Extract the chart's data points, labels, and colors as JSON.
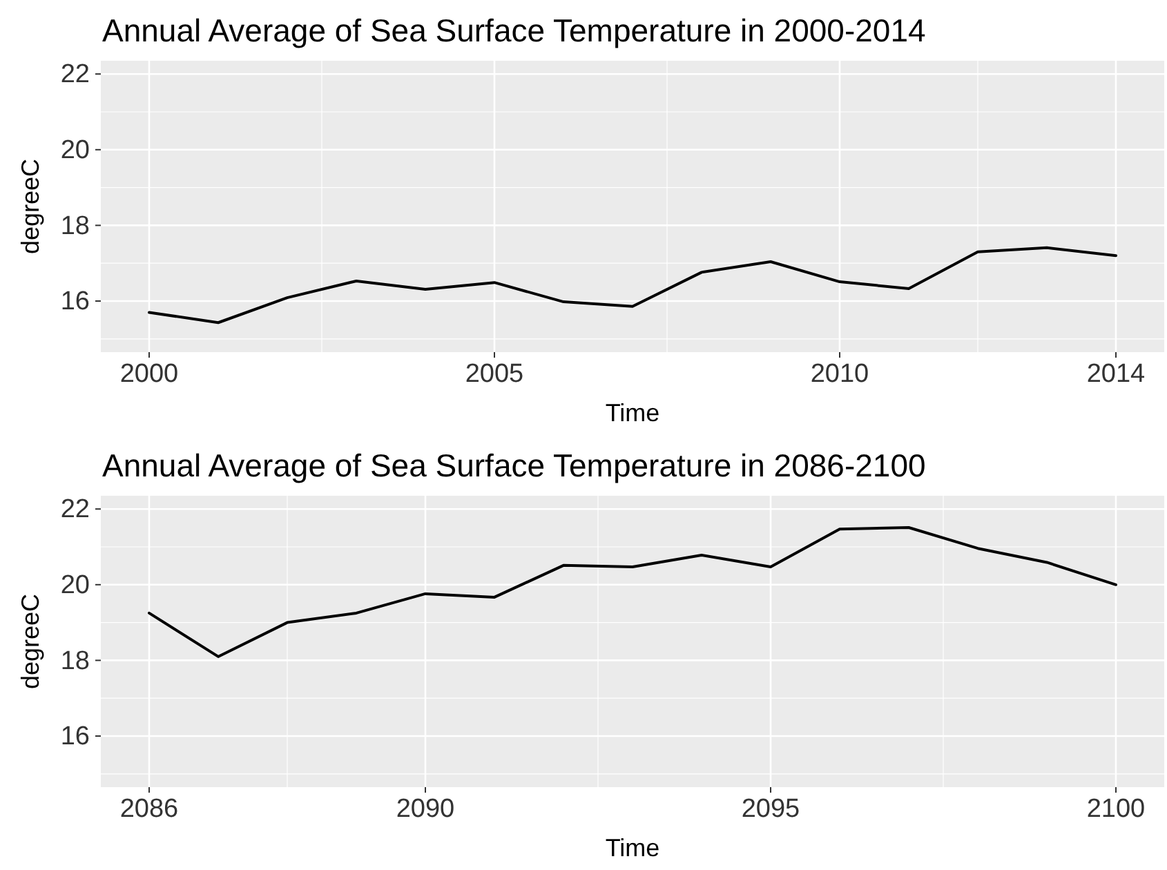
{
  "chart_data": [
    {
      "type": "line",
      "title": "Annual Average of Sea Surface Temperature in 2000-2014",
      "xlabel": "Time",
      "ylabel": "degreeC",
      "x": [
        2000,
        2001,
        2002,
        2003,
        2004,
        2005,
        2006,
        2007,
        2008,
        2009,
        2010,
        2011,
        2012,
        2013,
        2014
      ],
      "series": [
        {
          "color": "#000000",
          "values": [
            15.7,
            15.43,
            16.09,
            16.53,
            16.31,
            16.49,
            15.98,
            15.86,
            16.76,
            17.04,
            16.51,
            16.33,
            17.3,
            17.41,
            17.2
          ]
        }
      ],
      "xlim": [
        1999.3,
        2014.7
      ],
      "ylim": [
        14.65,
        22.35
      ],
      "xticks": [
        2000,
        2005,
        2010,
        2014
      ],
      "yticks": [
        16,
        18,
        20,
        22
      ],
      "grid": true
    },
    {
      "type": "line",
      "title": "Annual Average of Sea Surface Temperature in 2086-2100",
      "xlabel": "Time",
      "ylabel": "degreeC",
      "x": [
        2086,
        2087,
        2088,
        2089,
        2090,
        2091,
        2092,
        2093,
        2094,
        2095,
        2096,
        2097,
        2098,
        2099,
        2100
      ],
      "series": [
        {
          "color": "#000000",
          "values": [
            19.25,
            18.1,
            19.0,
            19.25,
            19.76,
            19.67,
            20.51,
            20.47,
            20.78,
            20.47,
            21.47,
            21.51,
            20.96,
            20.59,
            20.0
          ]
        }
      ],
      "xlim": [
        2085.3,
        2100.7
      ],
      "ylim": [
        14.65,
        22.35
      ],
      "xticks": [
        2086,
        2090,
        2095,
        2100
      ],
      "yticks": [
        16,
        18,
        20,
        22
      ],
      "grid": true
    }
  ]
}
